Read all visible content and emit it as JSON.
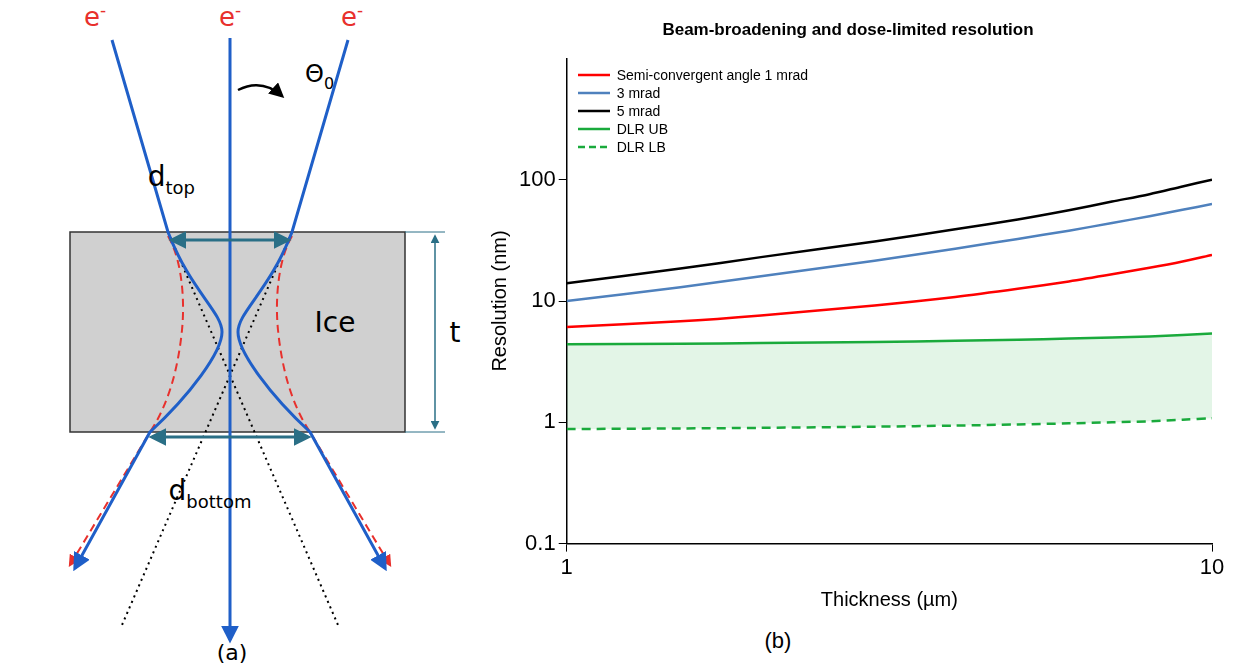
{
  "diagram": {
    "beam_labels": [
      {
        "base": "e",
        "sup": "-"
      },
      {
        "base": "e",
        "sup": "-"
      },
      {
        "base": "e",
        "sup": "-"
      }
    ],
    "angle_label": {
      "base": "Θ",
      "sub": "0"
    },
    "top_width_label": {
      "base": "d",
      "sub": "top"
    },
    "bottom_width_label": {
      "base": "d",
      "sub": "bottom"
    },
    "layer_label": "Ice",
    "thickness_label": "t",
    "panel_label": "(a)"
  },
  "chart_data": {
    "type": "line",
    "title": "Beam-broadening and dose-limited resolution",
    "x_label": "Thickness (µm)",
    "y_label": "Resolution (nm)",
    "panel_label": "(b)",
    "x": [
      1,
      1.5,
      2,
      3,
      4,
      5,
      6,
      7,
      8,
      9,
      10
    ],
    "series": [
      {
        "name": "Semi-convergent angle 1 mrad",
        "color": "#ff0000",
        "line_style": "solid",
        "values": [
          6.1,
          6.8,
          7.6,
          9.2,
          10.8,
          12.6,
          14.5,
          16.6,
          18.8,
          21.2,
          24
        ]
      },
      {
        "name": "3 mrad",
        "color": "#4f81bd",
        "line_style": "solid",
        "values": [
          10,
          13,
          16,
          21.5,
          27,
          32.5,
          38,
          44,
          50,
          56.5,
          63
        ]
      },
      {
        "name": "5 mrad",
        "color": "#000000",
        "line_style": "solid",
        "values": [
          14,
          18.5,
          23,
          31,
          39,
          47,
          56,
          66,
          76,
          88,
          100
        ]
      },
      {
        "name": "DLR UB",
        "color": "#1aaa3c",
        "line_style": "solid",
        "values": [
          4.4,
          4.45,
          4.5,
          4.6,
          4.7,
          4.8,
          4.9,
          5.0,
          5.1,
          5.25,
          5.4
        ]
      },
      {
        "name": "DLR LB",
        "color": "#1aaa3c",
        "line_style": "dashed",
        "values": [
          0.88,
          0.89,
          0.9,
          0.92,
          0.94,
          0.96,
          0.98,
          1.0,
          1.02,
          1.05,
          1.08
        ]
      }
    ],
    "log": true,
    "xlim": [
      1,
      10
    ],
    "xticks": [
      1,
      10
    ],
    "ylim": [
      0.1,
      1000
    ],
    "yticks": [
      0.1,
      1,
      10,
      100
    ],
    "grid": false,
    "legend": "upper left"
  }
}
